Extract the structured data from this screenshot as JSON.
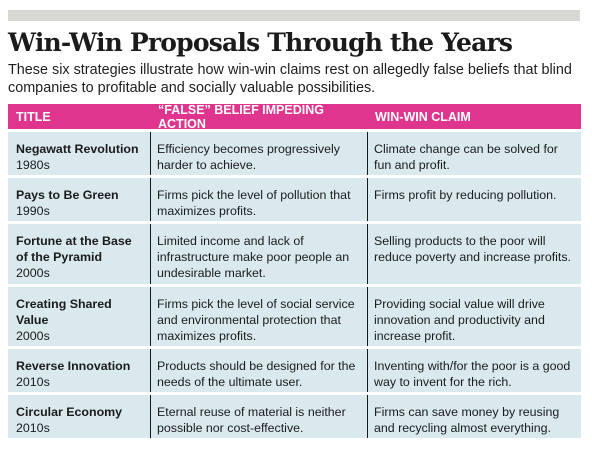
{
  "headline": "Win-Win Proposals Through the Years",
  "deck": "These six strategies illustrate how win-win claims rest on allegedly false beliefs that blind companies to profitable and socially valuable possibilities.",
  "table": {
    "headers": [
      "TITLE",
      "“FALSE” BELIEF IMPEDING ACTION",
      "WIN-WIN CLAIM"
    ],
    "rows": [
      {
        "title": "Negawatt Revolution",
        "era": "1980s",
        "belief": "Efficiency becomes progressively harder to achieve.",
        "claim": "Climate change can be solved for fun and profit."
      },
      {
        "title": "Pays to Be Green",
        "era": "1990s",
        "belief": "Firms pick the level of pollution that maximizes profits.",
        "claim": "Firms profit by reducing pollution."
      },
      {
        "title": "Fortune at the Base of the Pyramid",
        "era": "2000s",
        "belief": "Limited income and lack of infrastructure make poor people an undesirable market.",
        "claim": "Selling products to the poor will reduce poverty and increase profits."
      },
      {
        "title": "Creating Shared Value",
        "era": "2000s",
        "belief": "Firms pick the level of social service and environmental protection that maximizes profits.",
        "claim": "Providing social value will drive innovation and productivity and increase profit."
      },
      {
        "title": "Reverse Innovation",
        "era": "2010s",
        "belief": "Products should be designed for the needs of the ultimate user.",
        "claim": "Inventing with/for the poor is a good way to invent for the rich."
      },
      {
        "title": "Circular Economy",
        "era": "2010s",
        "belief": "Eternal reuse of material is neither possible nor cost-effective.",
        "claim": "Firms can save money by reusing and recycling almost everything."
      }
    ]
  }
}
